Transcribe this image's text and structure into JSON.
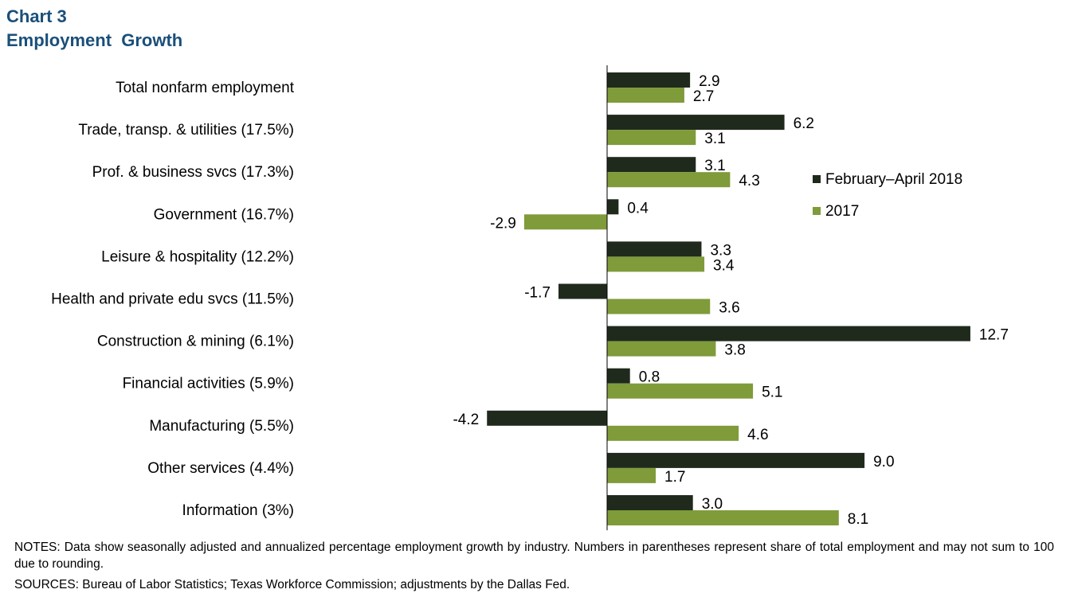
{
  "header": {
    "chart_label": "Chart 3",
    "title": "Employment  Growth"
  },
  "chart_data": {
    "type": "bar",
    "orientation": "horizontal",
    "categories": [
      "Total nonfarm employment",
      "Trade, transp. & utilities (17.5%)",
      "Prof. & business svcs (17.3%)",
      "Government (16.7%)",
      "Leisure & hospitality (12.2%)",
      "Health and private edu svcs (11.5%)",
      "Construction & mining (6.1%)",
      "Financial activities (5.9%)",
      "Manufacturing (5.5%)",
      "Other services (4.4%)",
      "Information (3%)"
    ],
    "series": [
      {
        "name": "February–April 2018",
        "color": "#1f2a1c",
        "values": [
          2.9,
          6.2,
          3.1,
          0.4,
          3.3,
          -1.7,
          12.7,
          0.8,
          -4.2,
          9.0,
          3.0
        ],
        "labels": [
          "2.9",
          "6.2",
          "3.1",
          "0.4",
          "3.3",
          "-1.7",
          "12.7",
          "0.8",
          "-4.2",
          "9.0",
          "3.0"
        ]
      },
      {
        "name": "2017",
        "color": "#7f9b3a",
        "values": [
          2.7,
          3.1,
          4.3,
          -2.9,
          3.4,
          3.6,
          3.8,
          5.1,
          4.6,
          1.7,
          8.1
        ],
        "labels": [
          "2.7",
          "3.1",
          "4.3",
          "-2.9",
          "3.4",
          "3.6",
          "3.8",
          "5.1",
          "4.6",
          "1.7",
          "8.1"
        ]
      }
    ],
    "xlim": [
      -5,
      15
    ],
    "legend_position": "right",
    "grid": false,
    "axis_visible": false
  },
  "footer": {
    "notes": "NOTES: Data show seasonally adjusted and annualized percentage employment growth by industry. Numbers in parentheses represent share of total employment and may not sum to 100 due to rounding.",
    "sources": "SOURCES: Bureau of Labor Statistics; Texas Workforce Commission; adjustments by the Dallas Fed."
  }
}
